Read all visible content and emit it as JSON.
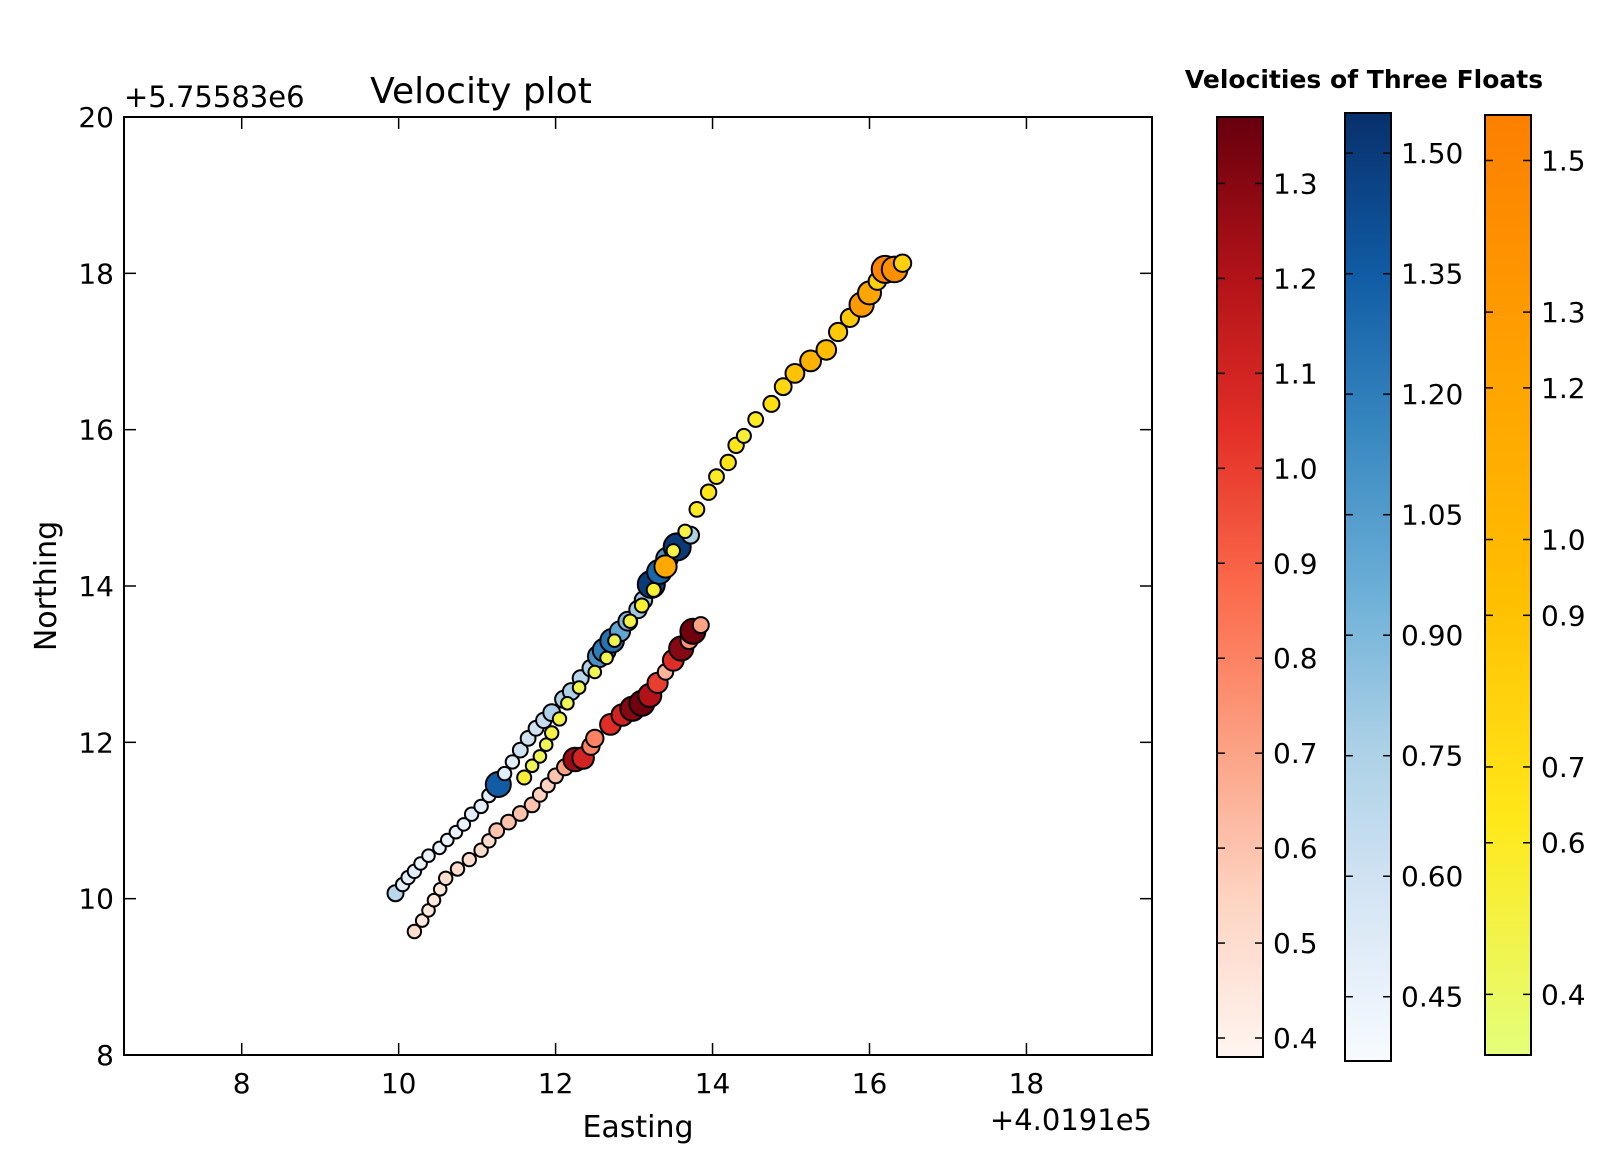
{
  "chart_data": {
    "type": "scatter",
    "title": "Velocity plot",
    "xlabel": "Easting",
    "ylabel": "Northing",
    "x_offset_label": "+4.0191e5",
    "y_offset_label": "+5.75583e6",
    "xlim": [
      6.5,
      19.6
    ],
    "ylim": [
      8,
      20
    ],
    "xticks": [
      8,
      10,
      12,
      14,
      16,
      18
    ],
    "yticks": [
      8,
      10,
      12,
      14,
      16,
      18,
      20
    ],
    "grid": false,
    "colorbar_title": "Velocities of Three Floats",
    "colorbars": [
      {
        "name": "Reds",
        "colors": [
          "#fff5f0",
          "#fdd4c2",
          "#fca082",
          "#fb6a4a",
          "#e32f27",
          "#b11218",
          "#67000d"
        ],
        "range": [
          0.38,
          1.37
        ],
        "ticks": [
          0.4,
          0.5,
          0.6,
          0.7,
          0.8,
          0.9,
          1.0,
          1.1,
          1.2,
          1.3
        ],
        "tick_labels": [
          "0.4",
          "0.5",
          "0.6",
          "0.7",
          "0.8",
          "0.9",
          "1.0",
          "1.1",
          "1.2",
          "1.3"
        ]
      },
      {
        "name": "Blues",
        "colors": [
          "#f7fbff",
          "#d6e6f4",
          "#abd0e6",
          "#6aaed6",
          "#3787c0",
          "#105ba4",
          "#08306b"
        ],
        "range": [
          0.37,
          1.55
        ],
        "ticks": [
          0.45,
          0.6,
          0.75,
          0.9,
          1.05,
          1.2,
          1.35,
          1.5
        ],
        "tick_labels": [
          "0.45",
          "0.60",
          "0.75",
          "0.90",
          "1.05",
          "1.20",
          "1.35",
          "1.50"
        ]
      },
      {
        "name": "Wistia",
        "colors": [
          "#e4ff7a",
          "#ffe81a",
          "#ffbd00",
          "#ffa000",
          "#fc7f00"
        ],
        "range": [
          0.32,
          1.56
        ],
        "ticks": [
          0.4,
          0.6,
          0.7,
          0.9,
          1.0,
          1.2,
          1.3,
          1.5
        ],
        "tick_labels": [
          "0.4",
          "0.6",
          "0.7",
          "0.9",
          "1.0",
          "1.2",
          "1.3",
          "1.5"
        ]
      }
    ],
    "series": [
      {
        "colormap": "Reds",
        "points": [
          [
            10.2,
            9.58,
            0.5
          ],
          [
            10.3,
            9.72,
            0.45
          ],
          [
            10.38,
            9.85,
            0.45
          ],
          [
            10.45,
            9.98,
            0.45
          ],
          [
            10.53,
            10.12,
            0.45
          ],
          [
            10.6,
            10.26,
            0.5
          ],
          [
            10.75,
            10.38,
            0.5
          ],
          [
            10.9,
            10.5,
            0.5
          ],
          [
            11.05,
            10.62,
            0.5
          ],
          [
            11.15,
            10.74,
            0.5
          ],
          [
            11.25,
            10.87,
            0.6
          ],
          [
            11.4,
            10.98,
            0.6
          ],
          [
            11.55,
            11.09,
            0.6
          ],
          [
            11.7,
            11.2,
            0.6
          ],
          [
            11.8,
            11.33,
            0.55
          ],
          [
            11.9,
            11.45,
            0.55
          ],
          [
            12.0,
            11.57,
            0.6
          ],
          [
            12.12,
            11.68,
            0.7
          ],
          [
            12.25,
            11.78,
            1.25
          ],
          [
            12.35,
            11.8,
            1.1
          ],
          [
            12.45,
            11.95,
            0.8
          ],
          [
            12.5,
            12.05,
            0.8
          ],
          [
            12.7,
            12.23,
            1.05
          ],
          [
            12.85,
            12.35,
            1.1
          ],
          [
            12.98,
            12.43,
            1.3
          ],
          [
            13.1,
            12.5,
            1.35
          ],
          [
            13.2,
            12.6,
            1.2
          ],
          [
            13.3,
            12.76,
            1.0
          ],
          [
            13.4,
            12.9,
            0.65
          ],
          [
            13.5,
            13.05,
            1.05
          ],
          [
            13.6,
            13.2,
            1.3
          ],
          [
            13.7,
            13.3,
            0.75
          ],
          [
            13.75,
            13.42,
            1.35
          ],
          [
            13.85,
            13.5,
            0.7
          ]
        ]
      },
      {
        "colormap": "Blues",
        "points": [
          [
            9.96,
            10.07,
            0.7
          ],
          [
            10.05,
            10.18,
            0.5
          ],
          [
            10.12,
            10.27,
            0.5
          ],
          [
            10.2,
            10.35,
            0.5
          ],
          [
            10.28,
            10.45,
            0.45
          ],
          [
            10.38,
            10.55,
            0.45
          ],
          [
            10.52,
            10.65,
            0.45
          ],
          [
            10.62,
            10.75,
            0.45
          ],
          [
            10.73,
            10.85,
            0.45
          ],
          [
            10.83,
            10.95,
            0.45
          ],
          [
            10.93,
            11.08,
            0.5
          ],
          [
            11.05,
            11.18,
            0.5
          ],
          [
            11.15,
            11.32,
            0.5
          ],
          [
            11.27,
            11.46,
            1.35
          ],
          [
            11.35,
            11.6,
            0.5
          ],
          [
            11.45,
            11.75,
            0.5
          ],
          [
            11.55,
            11.9,
            0.6
          ],
          [
            11.65,
            12.05,
            0.6
          ],
          [
            11.75,
            12.18,
            0.6
          ],
          [
            11.85,
            12.28,
            0.65
          ],
          [
            11.95,
            12.38,
            0.75
          ],
          [
            12.1,
            12.55,
            0.75
          ],
          [
            12.2,
            12.65,
            0.75
          ],
          [
            12.32,
            12.82,
            0.7
          ],
          [
            12.45,
            12.95,
            0.75
          ],
          [
            12.55,
            13.1,
            1.1
          ],
          [
            12.62,
            13.18,
            1.2
          ],
          [
            12.72,
            13.3,
            1.25
          ],
          [
            12.82,
            13.42,
            1.0
          ],
          [
            12.92,
            13.55,
            0.9
          ],
          [
            13.05,
            13.7,
            0.8
          ],
          [
            13.12,
            13.82,
            0.8
          ],
          [
            13.22,
            14.02,
            1.5
          ],
          [
            13.32,
            14.18,
            1.3
          ],
          [
            13.42,
            14.35,
            1.1
          ],
          [
            13.55,
            14.5,
            1.5
          ],
          [
            13.72,
            14.65,
            0.75
          ]
        ]
      },
      {
        "colormap": "Wistia",
        "points": [
          [
            11.6,
            11.55,
            0.55
          ],
          [
            11.7,
            11.7,
            0.45
          ],
          [
            11.8,
            11.82,
            0.45
          ],
          [
            11.88,
            11.97,
            0.45
          ],
          [
            11.95,
            12.12,
            0.5
          ],
          [
            12.05,
            12.3,
            0.5
          ],
          [
            12.15,
            12.5,
            0.45
          ],
          [
            12.3,
            12.7,
            0.45
          ],
          [
            12.5,
            12.9,
            0.45
          ],
          [
            12.65,
            13.08,
            0.45
          ],
          [
            12.75,
            13.3,
            0.45
          ],
          [
            12.95,
            13.55,
            0.5
          ],
          [
            13.1,
            13.75,
            0.55
          ],
          [
            13.25,
            13.95,
            0.55
          ],
          [
            13.4,
            14.25,
            1.15
          ],
          [
            13.5,
            14.45,
            0.5
          ],
          [
            13.65,
            14.7,
            0.5
          ],
          [
            13.8,
            14.98,
            0.6
          ],
          [
            13.95,
            15.2,
            0.65
          ],
          [
            14.05,
            15.4,
            0.6
          ],
          [
            14.2,
            15.58,
            0.65
          ],
          [
            14.3,
            15.8,
            0.65
          ],
          [
            14.4,
            15.92,
            0.55
          ],
          [
            14.55,
            16.13,
            0.6
          ],
          [
            14.75,
            16.33,
            0.7
          ],
          [
            14.9,
            16.55,
            0.75
          ],
          [
            15.05,
            16.72,
            0.9
          ],
          [
            15.25,
            16.88,
            1.05
          ],
          [
            15.45,
            17.02,
            0.95
          ],
          [
            15.6,
            17.25,
            0.85
          ],
          [
            15.75,
            17.43,
            0.85
          ],
          [
            15.9,
            17.6,
            1.3
          ],
          [
            16.0,
            17.75,
            1.2
          ],
          [
            16.1,
            17.9,
            0.8
          ],
          [
            16.2,
            18.05,
            1.5
          ],
          [
            16.32,
            18.05,
            1.4
          ],
          [
            16.42,
            18.13,
            0.8
          ]
        ]
      }
    ]
  }
}
